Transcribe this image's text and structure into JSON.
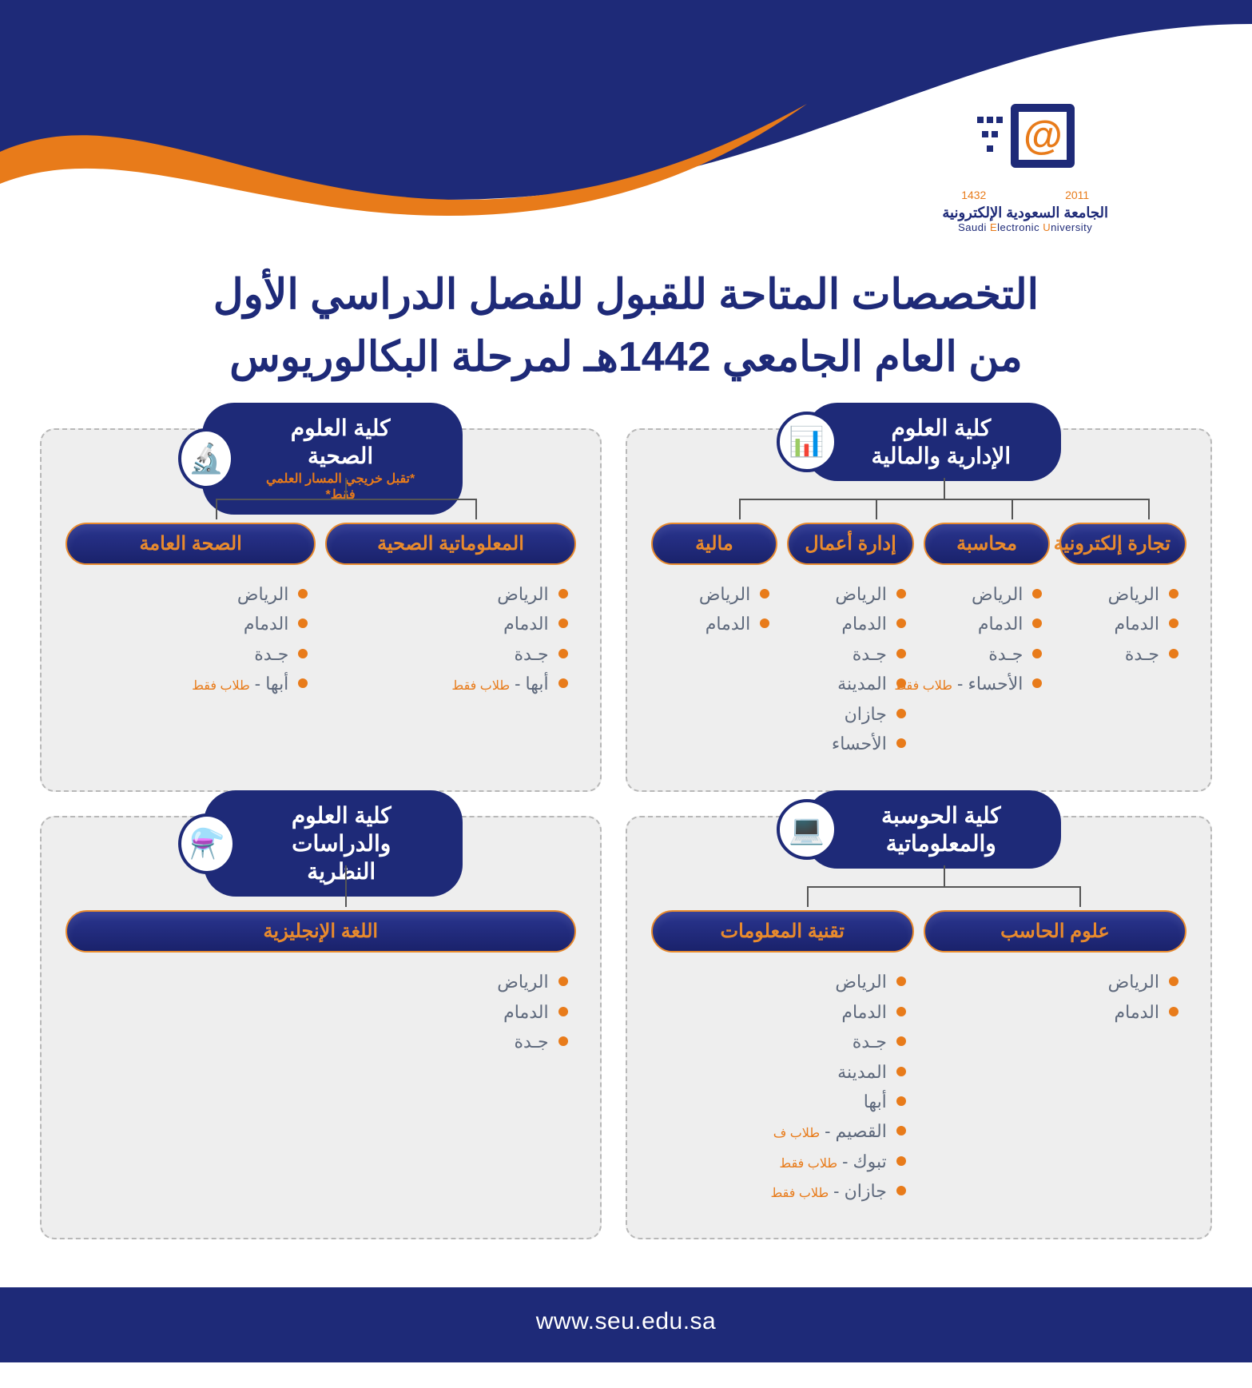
{
  "brand": {
    "year_left": "2011",
    "year_right": "1432",
    "name_ar": "الجامعة السعودية الإلكترونية",
    "name_en": "Saudi Electronic University"
  },
  "colors": {
    "navy": "#1e2a78",
    "orange": "#e87b1a",
    "panel_bg": "#eeeeee",
    "panel_border": "#b8b8b8",
    "text_muted": "#5f6a7d",
    "connector": "#555555",
    "white": "#ffffff"
  },
  "title_line1": "التخصصات المتاحة للقبول للفصل الدراسي الأول",
  "title_line2": "من العام الجامعي 1442هـ لمرحلة البكالوريوس",
  "footer_url": "www.seu.edu.sa",
  "colleges": [
    {
      "id": "admin-finance",
      "name_l1": "كلية العلوم",
      "name_l2": "الإدارية والمالية",
      "subtitle": "",
      "icon": "📊",
      "majors": [
        {
          "name": "تجارة إلكترونية",
          "campuses": [
            {
              "t": "الرياض"
            },
            {
              "t": "الدمام"
            },
            {
              "t": "جـدة"
            }
          ]
        },
        {
          "name": "محاسبة",
          "campuses": [
            {
              "t": "الرياض"
            },
            {
              "t": "الدمام"
            },
            {
              "t": "جـدة"
            },
            {
              "t": "الأحساء -",
              "note": "طلاب فقط"
            }
          ]
        },
        {
          "name": "إدارة أعمال",
          "campuses": [
            {
              "t": "الرياض"
            },
            {
              "t": "الدمام"
            },
            {
              "t": "جـدة"
            },
            {
              "t": "المدينة"
            },
            {
              "t": "جازان"
            },
            {
              "t": "الأحساء"
            }
          ]
        },
        {
          "name": "مالية",
          "campuses": [
            {
              "t": "الرياض"
            },
            {
              "t": "الدمام"
            }
          ]
        }
      ]
    },
    {
      "id": "health-sciences",
      "name_l1": "كلية العلوم الصحية",
      "name_l2": "",
      "subtitle": "*تقبل خريجي المسار العلمي فقط*",
      "icon": "🔬",
      "majors": [
        {
          "name": "المعلوماتية الصحية",
          "campuses": [
            {
              "t": "الرياض"
            },
            {
              "t": "الدمام"
            },
            {
              "t": "جـدة"
            },
            {
              "t": "أبها -",
              "note": "طلاب فقط"
            }
          ]
        },
        {
          "name": "الصحة العامة",
          "campuses": [
            {
              "t": "الرياض"
            },
            {
              "t": "الدمام"
            },
            {
              "t": "جـدة"
            },
            {
              "t": "أبها -",
              "note": "طلاب فقط"
            }
          ]
        }
      ]
    },
    {
      "id": "computing-informatics",
      "name_l1": "كلية الحوسبة",
      "name_l2": "والمعلوماتية",
      "subtitle": "",
      "icon": "💻",
      "majors": [
        {
          "name": "علوم الحاسب",
          "campuses": [
            {
              "t": "الرياض"
            },
            {
              "t": "الدمام"
            }
          ]
        },
        {
          "name": "تقنية المعلومات",
          "campuses": [
            {
              "t": "الرياض"
            },
            {
              "t": "الدمام"
            },
            {
              "t": "جـدة"
            },
            {
              "t": "المدينة"
            },
            {
              "t": "أبها"
            },
            {
              "t": "القصيم -",
              "note": "طلاب ف"
            },
            {
              "t": "تبوك -",
              "note": "طلاب فقط"
            },
            {
              "t": "جازان -",
              "note": "طلاب فقط"
            }
          ]
        }
      ]
    },
    {
      "id": "science-theoretical",
      "name_l1": "كلية العلوم",
      "name_l2": "والدراسات النظرية",
      "subtitle": "",
      "icon": "⚗️",
      "majors": [
        {
          "name": "اللغة الإنجليزية",
          "campuses": [
            {
              "t": "الرياض"
            },
            {
              "t": "الدمام"
            },
            {
              "t": "جـدة"
            }
          ]
        }
      ]
    }
  ]
}
